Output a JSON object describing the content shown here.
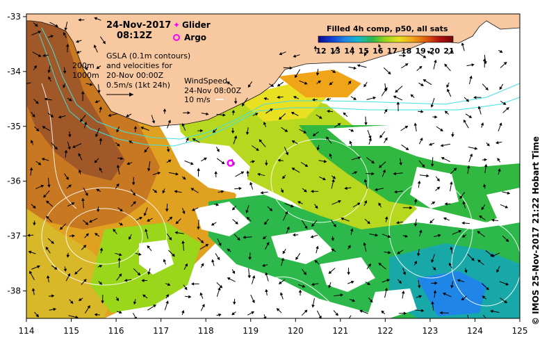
{
  "header": {
    "date": "24-Nov-2017",
    "time": "08:12Z"
  },
  "legend": {
    "glider_label": "Glider",
    "argo_label": "Argo",
    "colorbar_title": "Filled 4h comp, p50, all sats",
    "colorbar_ticks": [
      "12",
      "13",
      "14",
      "15",
      "16",
      "17",
      "18",
      "19",
      "20",
      "21"
    ],
    "colorbar_colors": [
      "#0a0a8c",
      "#1040d0",
      "#1f86e8",
      "#18b8c8",
      "#2cb84a",
      "#9ad61a",
      "#e8e020",
      "#f0a418",
      "#e05a10",
      "#b01010",
      "#700808"
    ]
  },
  "annotations": {
    "gsla_line1": "GSLA (0.1m contours)",
    "gsla_line2": "and velocities for",
    "gsla_line3": "20-Nov 00:00Z",
    "gsla_line4": "0.5m/s (1kt 24h)",
    "depth_200": "200m",
    "depth_1000": "1000m",
    "wind_line1": "WindSpeed",
    "wind_line2": "24-Nov 08:00Z",
    "wind_line3": "10 m/s"
  },
  "axes": {
    "x_ticks": [
      "114",
      "115",
      "116",
      "117",
      "118",
      "119",
      "120",
      "121",
      "122",
      "123",
      "124",
      "125"
    ],
    "y_ticks": [
      "-33",
      "-34",
      "-35",
      "-36",
      "-37",
      "-38"
    ]
  },
  "argo_position": {
    "lon": 118.55,
    "lat": -35.67
  },
  "credit": "© IMOS 25-Nov-2017 21:22 Hobart Time",
  "colors": {
    "land": "#f8c8a0",
    "no_data": "#ffffff",
    "shelf_contour": "#40e0e0",
    "argo_marker": "#ff00ff"
  }
}
